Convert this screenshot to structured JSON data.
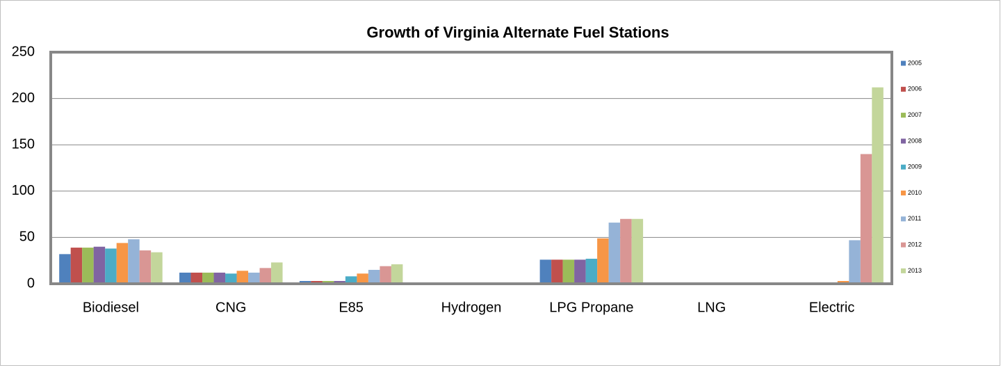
{
  "chart_data": {
    "type": "bar",
    "title": "Growth of Virginia Alternate Fuel Stations",
    "categories": [
      "Biodiesel",
      "CNG",
      "E85",
      "Hydrogen",
      "LPG Propane",
      "LNG",
      "Electric"
    ],
    "series": [
      {
        "name": "2005",
        "color": "#4f81bd",
        "values": [
          32,
          12,
          3,
          1,
          26,
          0,
          0
        ]
      },
      {
        "name": "2006",
        "color": "#c0504d",
        "values": [
          39,
          12,
          3,
          1,
          26,
          0,
          0
        ]
      },
      {
        "name": "2007",
        "color": "#9bbb59",
        "values": [
          39,
          12,
          3,
          1,
          26,
          0,
          0
        ]
      },
      {
        "name": "2008",
        "color": "#8064a2",
        "values": [
          40,
          12,
          3,
          1,
          26,
          0,
          0
        ]
      },
      {
        "name": "2009",
        "color": "#4bacc6",
        "values": [
          38,
          11,
          8,
          1,
          27,
          0,
          1
        ]
      },
      {
        "name": "2010",
        "color": "#f79646",
        "values": [
          44,
          14,
          11,
          1,
          49,
          0,
          3
        ]
      },
      {
        "name": "2011",
        "color": "#95b3d7",
        "values": [
          48,
          12,
          15,
          1,
          66,
          0,
          47
        ]
      },
      {
        "name": "2012",
        "color": "#d99694",
        "values": [
          36,
          17,
          19,
          1,
          70,
          1,
          140
        ]
      },
      {
        "name": "2013",
        "color": "#c3d69b",
        "values": [
          34,
          23,
          21,
          1,
          70,
          1,
          212
        ]
      }
    ],
    "ylim": [
      0,
      250
    ],
    "yticks": [
      0,
      50,
      100,
      150,
      200,
      250
    ],
    "grid": true,
    "legend": "right"
  }
}
